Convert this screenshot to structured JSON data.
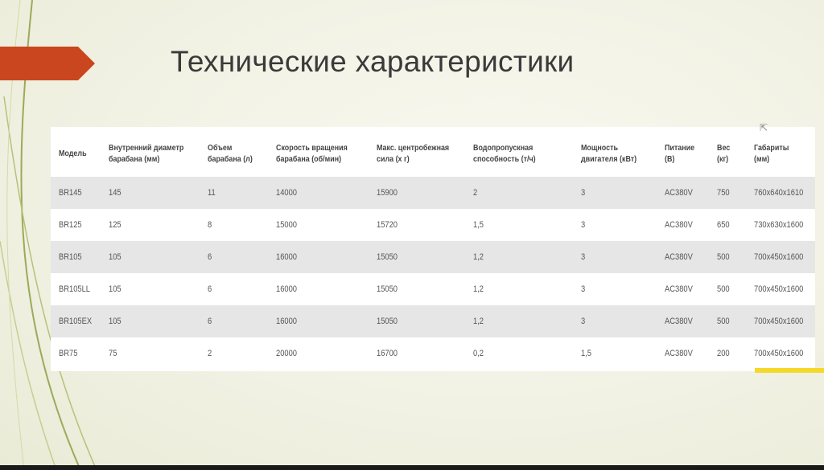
{
  "slide": {
    "title": "Технические характеристики",
    "accent": "#c9461e"
  },
  "table": {
    "headers": [
      "Модель",
      "Внутренний диаметр\nбарабана (мм)",
      "Объем\nбарабана (л)",
      "Скорость вращения\nбарабана (об/мин)",
      "Макс. центробежная\nсила (х г)",
      "Водопропускная\nспособность (т/ч)",
      "Мощность\nдвигателя (кВт)",
      "Питание\n(В)",
      "Вес\n(кг)",
      "Габариты\n(мм)"
    ],
    "rows": [
      [
        "BR145",
        "145",
        "11",
        "14000",
        "15900",
        "2",
        "3",
        "AC380V",
        "750",
        "760x640x1610"
      ],
      [
        "BR125",
        "125",
        "8",
        "15000",
        "15720",
        "1,5",
        "3",
        "AC380V",
        "650",
        "730x630x1600"
      ],
      [
        "BR105",
        "105",
        "6",
        "16000",
        "15050",
        "1,2",
        "3",
        "AC380V",
        "500",
        "700x450x1600"
      ],
      [
        "BR105LL",
        "105",
        "6",
        "16000",
        "15050",
        "1,2",
        "3",
        "AC380V",
        "500",
        "700x450x1600"
      ],
      [
        "BR105EX",
        "105",
        "6",
        "16000",
        "15050",
        "1,2",
        "3",
        "AC380V",
        "500",
        "700x450x1600"
      ],
      [
        "BR75",
        "75",
        "2",
        "20000",
        "16700",
        "0,2",
        "1,5",
        "AC380V",
        "200",
        "700x450x1600"
      ]
    ]
  }
}
